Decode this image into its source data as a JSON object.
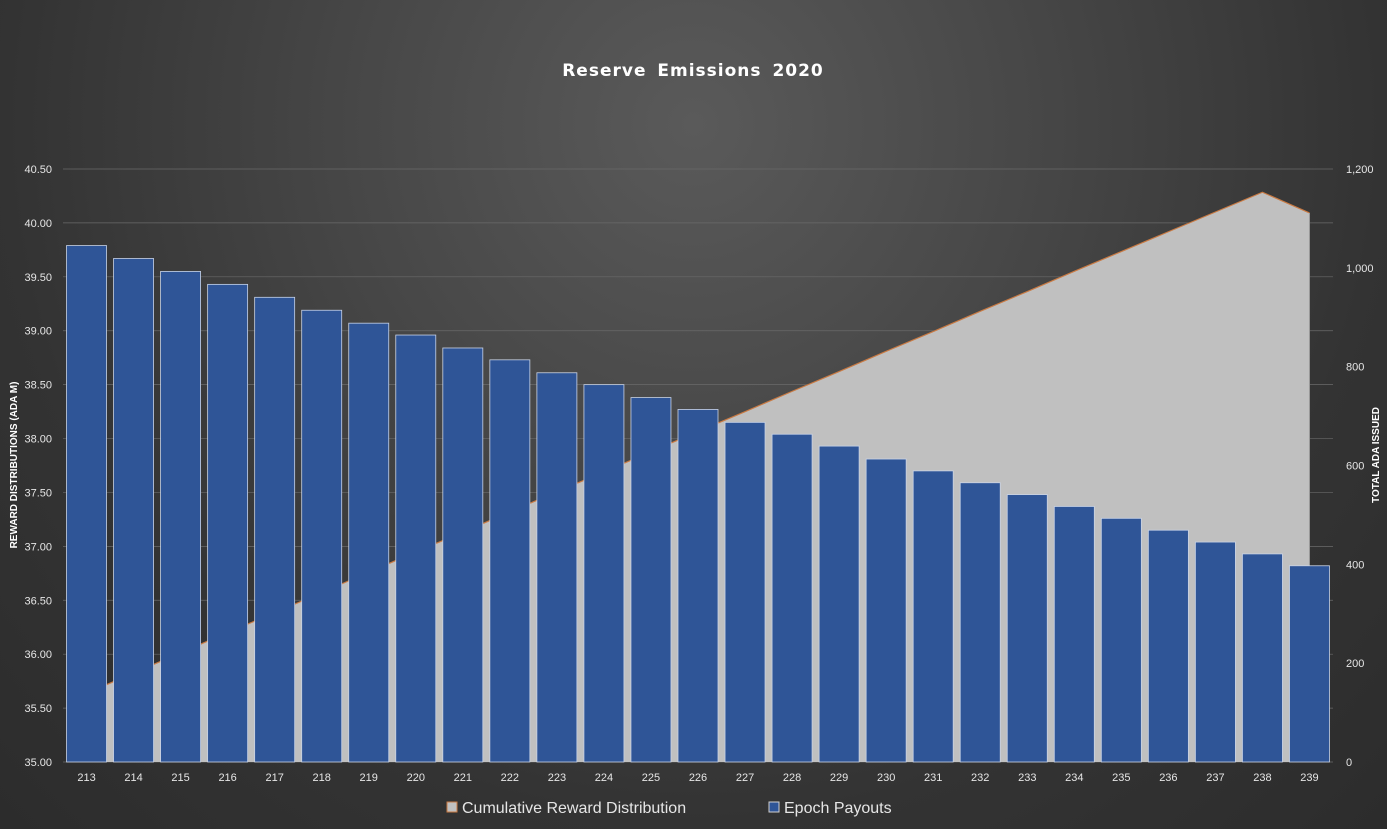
{
  "chart_data": {
    "type": "bar",
    "title": "Reserve Emissions 2020",
    "xlabel": "",
    "ylabel": "REWARD DISTRIBUTIONS (ADA M)",
    "y2label": "TOTAL ADA ISSUED",
    "ylim": [
      35.0,
      40.5
    ],
    "y2lim": [
      0,
      1200
    ],
    "yticks": [
      "35.00",
      "35.50",
      "36.00",
      "36.50",
      "37.00",
      "37.50",
      "38.00",
      "38.50",
      "39.00",
      "39.50",
      "40.00",
      "40.50"
    ],
    "y2ticks": [
      "0",
      "200",
      "400",
      "600",
      "800",
      "1,000",
      "1,200"
    ],
    "categories": [
      "213",
      "214",
      "215",
      "216",
      "217",
      "218",
      "219",
      "220",
      "221",
      "222",
      "223",
      "224",
      "225",
      "226",
      "227",
      "228",
      "229",
      "230",
      "231",
      "232",
      "233",
      "234",
      "235",
      "236",
      "237",
      "238",
      "239"
    ],
    "grid": true,
    "legend_position": "bottom",
    "series": [
      {
        "name": "Epoch Payouts",
        "type": "bar",
        "axis": "left",
        "color": "#2f5597",
        "values": [
          39.79,
          39.67,
          39.55,
          39.43,
          39.31,
          39.19,
          39.07,
          38.96,
          38.84,
          38.73,
          38.61,
          38.5,
          38.38,
          38.27,
          38.15,
          38.04,
          37.93,
          37.81,
          37.7,
          37.59,
          37.48,
          37.37,
          37.26,
          37.15,
          37.04,
          36.93,
          36.82
        ]
      },
      {
        "name": "Cumulative Reward Distribution",
        "type": "area",
        "axis": "right",
        "color": "#c0c0c0",
        "line_color": "#c97a43",
        "values": [
          139,
          180,
          221,
          262,
          302,
          343,
          384,
          425,
          465,
          506,
          547,
          587,
          628,
          669,
          709,
          750,
          790,
          831,
          871,
          912,
          952,
          993,
          1033,
          1073,
          1113,
          1153,
          1111
        ]
      }
    ]
  }
}
